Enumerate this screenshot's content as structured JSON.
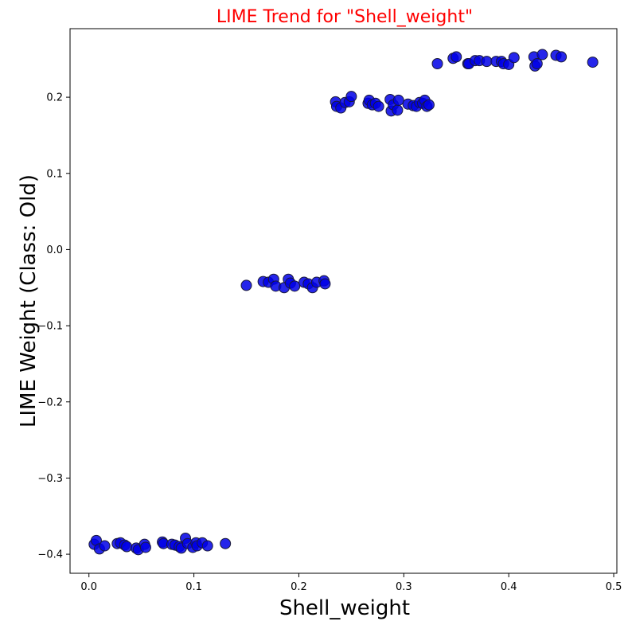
{
  "chart_data": {
    "type": "scatter",
    "title": "LIME Trend for \"Shell_weight\"",
    "xlabel": "Shell_weight",
    "ylabel": "LIME Weight (Class: Old)",
    "xlim": [
      -0.018,
      0.503
    ],
    "ylim": [
      -0.425,
      0.29
    ],
    "x_ticks": [
      "0.0",
      "0.1",
      "0.2",
      "0.3",
      "0.4",
      "0.5"
    ],
    "y_ticks": [
      "−0.4",
      "−0.3",
      "−0.2",
      "−0.1",
      "0.0",
      "0.1",
      "0.2"
    ],
    "grid": false,
    "legend": "none",
    "marker_color": "#0000e6",
    "marker_edge_color": "#1a1a3a",
    "points": [
      [
        0.005,
        -0.387
      ],
      [
        0.007,
        -0.382
      ],
      [
        0.01,
        -0.393
      ],
      [
        0.015,
        -0.389
      ],
      [
        0.027,
        -0.386
      ],
      [
        0.03,
        -0.385
      ],
      [
        0.034,
        -0.388
      ],
      [
        0.036,
        -0.39
      ],
      [
        0.045,
        -0.392
      ],
      [
        0.047,
        -0.394
      ],
      [
        0.053,
        -0.387
      ],
      [
        0.054,
        -0.391
      ],
      [
        0.07,
        -0.384
      ],
      [
        0.071,
        -0.386
      ],
      [
        0.079,
        -0.387
      ],
      [
        0.082,
        -0.388
      ],
      [
        0.086,
        -0.39
      ],
      [
        0.088,
        -0.392
      ],
      [
        0.092,
        -0.379
      ],
      [
        0.094,
        -0.386
      ],
      [
        0.099,
        -0.391
      ],
      [
        0.102,
        -0.385
      ],
      [
        0.103,
        -0.389
      ],
      [
        0.108,
        -0.385
      ],
      [
        0.113,
        -0.389
      ],
      [
        0.13,
        -0.386
      ],
      [
        0.15,
        -0.047
      ],
      [
        0.166,
        -0.042
      ],
      [
        0.171,
        -0.043
      ],
      [
        0.176,
        -0.039
      ],
      [
        0.178,
        -0.048
      ],
      [
        0.186,
        -0.05
      ],
      [
        0.19,
        -0.039
      ],
      [
        0.192,
        -0.044
      ],
      [
        0.196,
        -0.048
      ],
      [
        0.205,
        -0.043
      ],
      [
        0.209,
        -0.045
      ],
      [
        0.213,
        -0.05
      ],
      [
        0.217,
        -0.043
      ],
      [
        0.224,
        -0.041
      ],
      [
        0.225,
        -0.045
      ],
      [
        0.235,
        0.194
      ],
      [
        0.236,
        0.188
      ],
      [
        0.24,
        0.186
      ],
      [
        0.244,
        0.193
      ],
      [
        0.248,
        0.194
      ],
      [
        0.25,
        0.201
      ],
      [
        0.266,
        0.192
      ],
      [
        0.267,
        0.196
      ],
      [
        0.27,
        0.19
      ],
      [
        0.273,
        0.192
      ],
      [
        0.276,
        0.188
      ],
      [
        0.287,
        0.197
      ],
      [
        0.288,
        0.182
      ],
      [
        0.29,
        0.19
      ],
      [
        0.294,
        0.183
      ],
      [
        0.295,
        0.196
      ],
      [
        0.304,
        0.191
      ],
      [
        0.309,
        0.189
      ],
      [
        0.312,
        0.188
      ],
      [
        0.315,
        0.193
      ],
      [
        0.318,
        0.192
      ],
      [
        0.32,
        0.196
      ],
      [
        0.322,
        0.188
      ],
      [
        0.324,
        0.19
      ],
      [
        0.332,
        0.244
      ],
      [
        0.347,
        0.251
      ],
      [
        0.35,
        0.253
      ],
      [
        0.361,
        0.244
      ],
      [
        0.362,
        0.244
      ],
      [
        0.368,
        0.248
      ],
      [
        0.372,
        0.248
      ],
      [
        0.379,
        0.247
      ],
      [
        0.388,
        0.247
      ],
      [
        0.393,
        0.247
      ],
      [
        0.395,
        0.244
      ],
      [
        0.4,
        0.243
      ],
      [
        0.405,
        0.252
      ],
      [
        0.424,
        0.253
      ],
      [
        0.425,
        0.241
      ],
      [
        0.427,
        0.244
      ],
      [
        0.432,
        0.256
      ],
      [
        0.445,
        0.255
      ],
      [
        0.45,
        0.253
      ],
      [
        0.48,
        0.246
      ]
    ]
  }
}
